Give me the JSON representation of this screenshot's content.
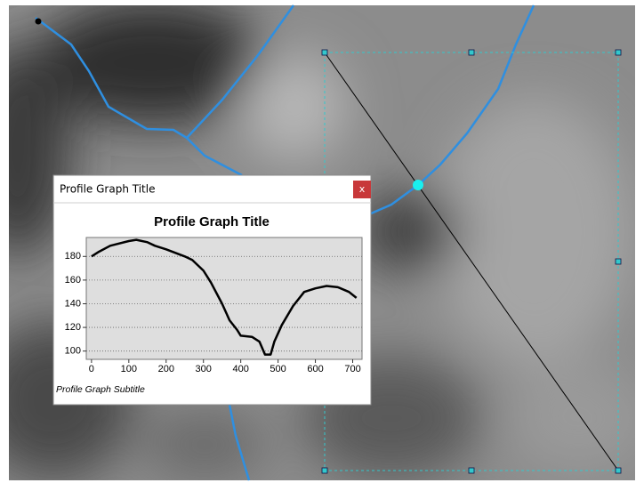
{
  "window": {
    "title": "Profile Graph Title",
    "close": "x"
  },
  "chart_data": {
    "type": "line",
    "title": "Profile Graph Title",
    "subtitle": "Profile Graph Subtitle",
    "x": [
      0,
      20,
      50,
      100,
      120,
      150,
      170,
      200,
      250,
      270,
      300,
      320,
      350,
      370,
      390,
      400,
      430,
      450,
      465,
      480,
      490,
      510,
      540,
      570,
      600,
      630,
      660,
      690,
      710
    ],
    "values": [
      180,
      184,
      189,
      193,
      194,
      192,
      189,
      186,
      180,
      177,
      168,
      158,
      140,
      126,
      118,
      113,
      112,
      108,
      97,
      97,
      108,
      122,
      138,
      150,
      153,
      155,
      154,
      150,
      145
    ],
    "color": "#000000",
    "xlim": [
      -14,
      725
    ],
    "ylim": [
      93,
      196
    ],
    "xticks": [
      0,
      100,
      200,
      300,
      400,
      500,
      600,
      700
    ],
    "yticks": [
      100,
      120,
      140,
      160,
      180
    ],
    "grid": true
  }
}
